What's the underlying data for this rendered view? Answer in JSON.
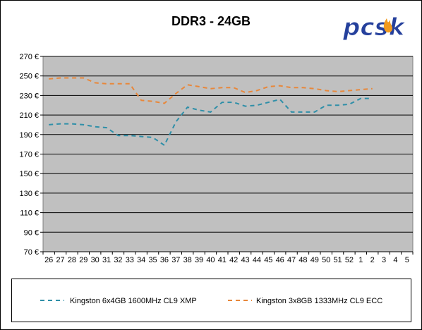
{
  "chart_data": {
    "type": "line",
    "title": "DDR3 - 24GB",
    "xlabel": "",
    "ylabel": "",
    "categories": [
      "26",
      "27",
      "28",
      "29",
      "30",
      "31",
      "32",
      "33",
      "34",
      "35",
      "36",
      "37",
      "38",
      "39",
      "40",
      "41",
      "42",
      "43",
      "44",
      "45",
      "46",
      "47",
      "48",
      "49",
      "50",
      "51",
      "52",
      "1",
      "2",
      "3",
      "4",
      "5"
    ],
    "yticks": [
      "70 €",
      "90 €",
      "110 €",
      "130 €",
      "150 €",
      "170 €",
      "190 €",
      "210 €",
      "230 €",
      "250 €",
      "270 €"
    ],
    "ylim": [
      70,
      270
    ],
    "grid": "horizontal",
    "legend_position": "bottom",
    "series": [
      {
        "name": "Kingston 6x4GB 1600MHz CL9 XMP",
        "color": "#2f8fa8",
        "values": [
          200,
          201,
          201,
          200,
          198,
          197,
          189,
          189,
          188,
          187,
          179,
          203,
          218,
          215,
          213,
          223,
          223,
          219,
          220,
          223,
          226,
          213,
          213,
          213,
          220,
          220,
          221,
          227,
          227,
          null,
          null,
          null
        ]
      },
      {
        "name": "Kingston 3x8GB 1333MHz CL9 ECC",
        "color": "#e8873a",
        "values": [
          247,
          248,
          248,
          248,
          243,
          242,
          242,
          242,
          225,
          224,
          222,
          232,
          241,
          239,
          237,
          238,
          238,
          233,
          235,
          239,
          240,
          238,
          238,
          237,
          235,
          234,
          235,
          236,
          237,
          null,
          null,
          null
        ]
      }
    ]
  },
  "logo": {
    "text": "pcsk"
  }
}
